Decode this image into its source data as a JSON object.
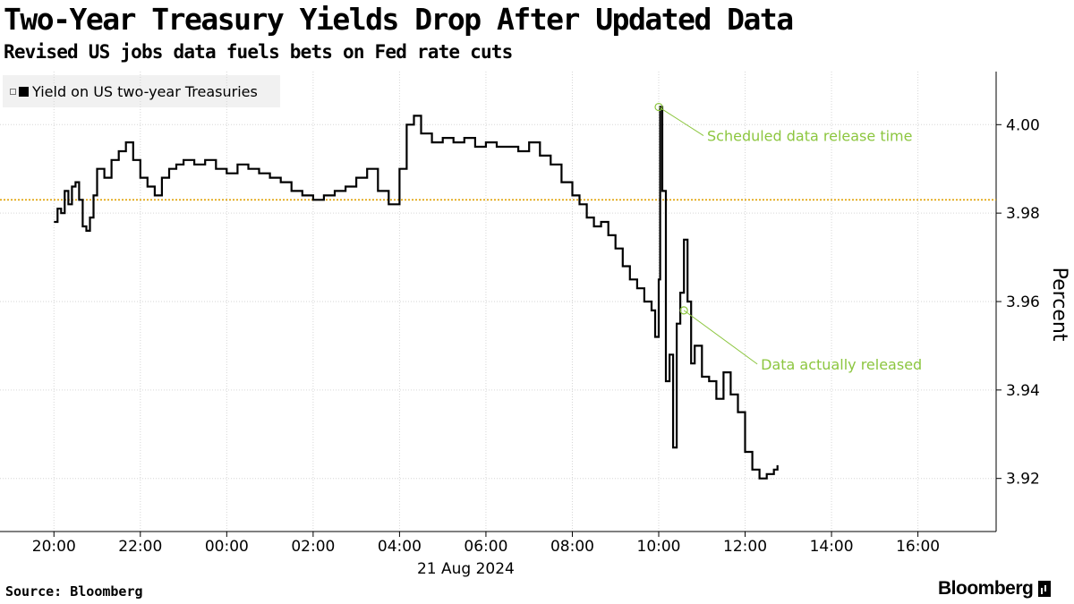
{
  "header": {
    "title": "Two-Year Treasury Yields Drop After Updated Data",
    "subtitle": "Revised US jobs data fuels bets on Fed rate cuts"
  },
  "footer": {
    "source": "Source: Bloomberg",
    "logo": "Bloomberg"
  },
  "colors": {
    "series": "#000000",
    "reference_line": "#e0a000",
    "annotation": "#8cc63f",
    "grid": "#d6d6d6"
  },
  "chart_data": {
    "type": "line",
    "title": "Two-Year Treasury Yields Drop After Updated Data",
    "subtitle": "Revised US jobs data fuels bets on Fed rate cuts",
    "ylabel": "Percent",
    "date_label": "21 Aug 2024",
    "x_ticks": [
      "20:00",
      "22:00",
      "00:00",
      "02:00",
      "04:00",
      "06:00",
      "08:00",
      "10:00",
      "12:00",
      "14:00",
      "16:00"
    ],
    "y_ticks": [
      3.92,
      3.94,
      3.96,
      3.98,
      4.0
    ],
    "ylim": [
      3.908,
      4.012
    ],
    "xlim": [
      "2024-08-20 19:00",
      "2024-08-21 17:30"
    ],
    "grid": true,
    "legend_position": "top-left",
    "reference_line": 3.983,
    "series": [
      {
        "name": "Yield on US two-year Treasuries",
        "x": [
          "2024-08-20 20:00",
          "2024-08-20 20:05",
          "2024-08-20 20:10",
          "2024-08-20 20:15",
          "2024-08-20 20:20",
          "2024-08-20 20:25",
          "2024-08-20 20:30",
          "2024-08-20 20:35",
          "2024-08-20 20:40",
          "2024-08-20 20:45",
          "2024-08-20 20:50",
          "2024-08-20 20:55",
          "2024-08-20 21:00",
          "2024-08-20 21:10",
          "2024-08-20 21:20",
          "2024-08-20 21:30",
          "2024-08-20 21:40",
          "2024-08-20 21:50",
          "2024-08-20 22:00",
          "2024-08-20 22:10",
          "2024-08-20 22:20",
          "2024-08-20 22:30",
          "2024-08-20 22:40",
          "2024-08-20 22:50",
          "2024-08-20 23:00",
          "2024-08-20 23:15",
          "2024-08-20 23:30",
          "2024-08-20 23:45",
          "2024-08-21 00:00",
          "2024-08-21 00:15",
          "2024-08-21 00:30",
          "2024-08-21 00:45",
          "2024-08-21 01:00",
          "2024-08-21 01:15",
          "2024-08-21 01:30",
          "2024-08-21 01:45",
          "2024-08-21 02:00",
          "2024-08-21 02:15",
          "2024-08-21 02:30",
          "2024-08-21 02:45",
          "2024-08-21 03:00",
          "2024-08-21 03:15",
          "2024-08-21 03:30",
          "2024-08-21 03:45",
          "2024-08-21 04:00",
          "2024-08-21 04:10",
          "2024-08-21 04:20",
          "2024-08-21 04:30",
          "2024-08-21 04:45",
          "2024-08-21 05:00",
          "2024-08-21 05:15",
          "2024-08-21 05:30",
          "2024-08-21 05:45",
          "2024-08-21 06:00",
          "2024-08-21 06:15",
          "2024-08-21 06:30",
          "2024-08-21 06:45",
          "2024-08-21 07:00",
          "2024-08-21 07:15",
          "2024-08-21 07:30",
          "2024-08-21 07:45",
          "2024-08-21 08:00",
          "2024-08-21 08:10",
          "2024-08-21 08:20",
          "2024-08-21 08:30",
          "2024-08-21 08:40",
          "2024-08-21 08:50",
          "2024-08-21 09:00",
          "2024-08-21 09:10",
          "2024-08-21 09:20",
          "2024-08-21 09:30",
          "2024-08-21 09:40",
          "2024-08-21 09:50",
          "2024-08-21 09:55",
          "2024-08-21 10:00",
          "2024-08-21 10:02",
          "2024-08-21 10:05",
          "2024-08-21 10:10",
          "2024-08-21 10:15",
          "2024-08-21 10:20",
          "2024-08-21 10:25",
          "2024-08-21 10:30",
          "2024-08-21 10:35",
          "2024-08-21 10:40",
          "2024-08-21 10:45",
          "2024-08-21 10:50",
          "2024-08-21 11:00",
          "2024-08-21 11:10",
          "2024-08-21 11:20",
          "2024-08-21 11:30",
          "2024-08-21 11:40",
          "2024-08-21 11:50",
          "2024-08-21 12:00",
          "2024-08-21 12:10",
          "2024-08-21 12:20",
          "2024-08-21 12:30",
          "2024-08-21 12:40",
          "2024-08-21 12:45"
        ],
        "y": [
          3.978,
          3.981,
          3.98,
          3.985,
          3.982,
          3.986,
          3.987,
          3.983,
          3.977,
          3.976,
          3.979,
          3.984,
          3.99,
          3.988,
          3.992,
          3.994,
          3.996,
          3.992,
          3.988,
          3.986,
          3.984,
          3.988,
          3.99,
          3.991,
          3.992,
          3.991,
          3.992,
          3.99,
          3.989,
          3.991,
          3.99,
          3.989,
          3.988,
          3.987,
          3.985,
          3.984,
          3.983,
          3.984,
          3.985,
          3.986,
          3.988,
          3.99,
          3.985,
          3.982,
          3.99,
          4.0,
          4.002,
          3.998,
          3.996,
          3.997,
          3.996,
          3.997,
          3.995,
          3.996,
          3.995,
          3.995,
          3.994,
          3.996,
          3.993,
          3.991,
          3.987,
          3.984,
          3.982,
          3.979,
          3.977,
          3.978,
          3.975,
          3.972,
          3.968,
          3.965,
          3.963,
          3.96,
          3.958,
          3.952,
          3.965,
          4.004,
          3.985,
          3.942,
          3.948,
          3.927,
          3.955,
          3.962,
          3.974,
          3.96,
          3.946,
          3.95,
          3.943,
          3.942,
          3.938,
          3.944,
          3.939,
          3.935,
          3.926,
          3.922,
          3.92,
          3.921,
          3.922,
          3.923
        ]
      }
    ],
    "annotations": [
      {
        "label": "Scheduled data release time",
        "x": "2024-08-21 10:00",
        "y": 4.004
      },
      {
        "label": "Data actually released",
        "x": "2024-08-21 10:35",
        "y": 3.958
      }
    ]
  }
}
